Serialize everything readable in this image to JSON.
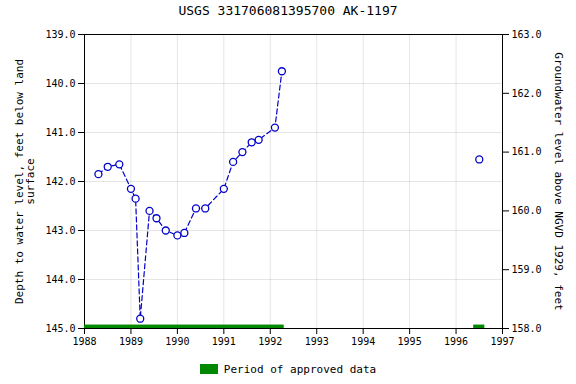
{
  "chart_data": {
    "type": "line",
    "title": "USGS 331706081395700 AK-1197",
    "ylabel": "Depth to water level, feet below land\nsurface",
    "y2label": "Groundwater level above NGVD 1929, feet",
    "xlim": [
      1988.0,
      1997.0
    ],
    "xticks": [
      1988,
      1989,
      1990,
      1991,
      1992,
      1993,
      1994,
      1995,
      1996,
      1997
    ],
    "ylim": [
      145.0,
      139.0
    ],
    "yticks": [
      {
        "value": 139.0,
        "label": "139.0"
      },
      {
        "value": 140.0,
        "label": "140.0"
      },
      {
        "value": 141.0,
        "label": "141.0"
      },
      {
        "value": 142.0,
        "label": "142.0"
      },
      {
        "value": 143.0,
        "label": "143.0"
      },
      {
        "value": 144.0,
        "label": "144.0"
      },
      {
        "value": 145.0,
        "label": "145.0"
      }
    ],
    "y2lim": [
      158.0,
      163.0
    ],
    "y2ticks": [
      {
        "value": 163.0,
        "label": "163.0"
      },
      {
        "value": 162.0,
        "label": "162.0"
      },
      {
        "value": 161.0,
        "label": "161.0"
      },
      {
        "value": 160.0,
        "label": "160.0"
      },
      {
        "value": 159.0,
        "label": "159.0"
      },
      {
        "value": 158.0,
        "label": "158.0"
      }
    ],
    "grid": true,
    "legend": "bottom",
    "series": [
      {
        "type": "line",
        "line_style": "dashed",
        "marker": "circle",
        "color": "#0000cc",
        "x": [
          1988.3,
          1988.5,
          1988.75,
          1989.0,
          1989.1,
          1989.2,
          1989.4,
          1989.55,
          1989.75,
          1990.0,
          1990.15,
          1990.4,
          1990.6,
          1991.0,
          1991.2,
          1991.4,
          1991.6,
          1991.75,
          1992.1,
          1992.25
        ],
        "values": [
          141.85,
          141.7,
          141.65,
          142.15,
          142.35,
          144.8,
          142.6,
          142.75,
          143.0,
          143.1,
          143.05,
          142.55,
          142.55,
          142.15,
          141.6,
          141.4,
          141.2,
          141.15,
          140.9,
          139.75
        ]
      },
      {
        "type": "scatter",
        "marker": "circle",
        "color": "#0000cc",
        "x": [
          1996.5
        ],
        "values": [
          141.55
        ]
      }
    ],
    "approved": {
      "name": "Period of approved data",
      "color": "#008800",
      "periods": [
        [
          1988.0,
          1992.3
        ],
        [
          1996.38,
          1996.62
        ]
      ],
      "y": 144.93,
      "height": 0.14
    }
  }
}
